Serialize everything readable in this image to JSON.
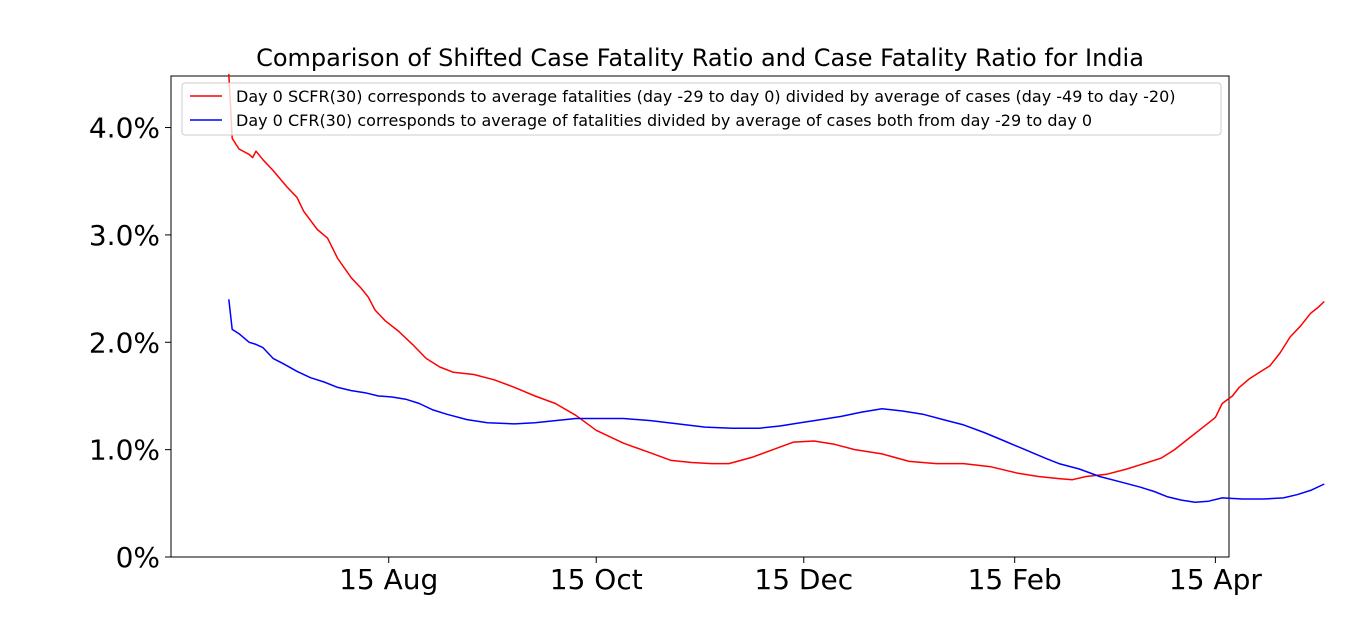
{
  "chart_data": {
    "type": "line",
    "title": "Comparison of Shifted Case Fatality Ratio and Case Fatality Ratio for India",
    "xlabel": "",
    "ylabel": "",
    "x_unit": "days since 15 Jun 2020",
    "xlim": [
      -3,
      308
    ],
    "ylim": [
      0,
      0.0448
    ],
    "yticks": [
      0,
      0.01,
      0.02,
      0.03,
      0.04
    ],
    "ytick_labels": [
      "0%",
      "1.0%",
      "2.0%",
      "3.0%",
      "4.0%"
    ],
    "xticks": [
      61,
      122,
      183,
      245,
      304
    ],
    "xtick_labels": [
      "15 Aug",
      "15 Oct",
      "15 Dec",
      "15 Feb",
      "15 Apr"
    ],
    "legend_position": "top",
    "series": [
      {
        "name": "Day 0 SCFR(30) corresponds to average fatalities (day -29 to day 0) divided by average of cases (day -49 to day -20)",
        "color": "#ff0000",
        "points": [
          [
            14,
            0.045
          ],
          [
            15,
            0.039
          ],
          [
            17,
            0.038
          ],
          [
            20,
            0.0375
          ],
          [
            21,
            0.0372
          ],
          [
            22,
            0.0378
          ],
          [
            24,
            0.037
          ],
          [
            27,
            0.036
          ],
          [
            31,
            0.0345
          ],
          [
            34,
            0.0335
          ],
          [
            36,
            0.0322
          ],
          [
            40,
            0.0305
          ],
          [
            43,
            0.0297
          ],
          [
            46,
            0.0278
          ],
          [
            50,
            0.026
          ],
          [
            53,
            0.025
          ],
          [
            55,
            0.0242
          ],
          [
            57,
            0.023
          ],
          [
            60,
            0.022
          ],
          [
            64,
            0.021
          ],
          [
            68,
            0.0198
          ],
          [
            72,
            0.0185
          ],
          [
            76,
            0.0177
          ],
          [
            80,
            0.0172
          ],
          [
            86,
            0.017
          ],
          [
            92,
            0.0165
          ],
          [
            98,
            0.0158
          ],
          [
            104,
            0.015
          ],
          [
            110,
            0.0143
          ],
          [
            116,
            0.0132
          ],
          [
            122,
            0.0118
          ],
          [
            130,
            0.0106
          ],
          [
            138,
            0.0097
          ],
          [
            144,
            0.009
          ],
          [
            150,
            0.0088
          ],
          [
            156,
            0.0087
          ],
          [
            161,
            0.0087
          ],
          [
            168,
            0.0093
          ],
          [
            174,
            0.01
          ],
          [
            180,
            0.0107
          ],
          [
            186,
            0.0108
          ],
          [
            192,
            0.0105
          ],
          [
            198,
            0.01
          ],
          [
            206,
            0.0096
          ],
          [
            214,
            0.0089
          ],
          [
            222,
            0.0087
          ],
          [
            230,
            0.0087
          ],
          [
            238,
            0.0084
          ],
          [
            246,
            0.0078
          ],
          [
            252,
            0.0075
          ],
          [
            258,
            0.0073
          ],
          [
            262,
            0.0072
          ],
          [
            266,
            0.0075
          ],
          [
            272,
            0.0077
          ],
          [
            278,
            0.0082
          ],
          [
            282,
            0.0086
          ],
          [
            288,
            0.0092
          ],
          [
            292,
            0.01
          ],
          [
            296,
            0.011
          ],
          [
            300,
            0.012
          ],
          [
            304,
            0.013
          ],
          [
            306,
            0.0143
          ],
          [
            309,
            0.015
          ],
          [
            311,
            0.0158
          ],
          [
            314,
            0.0166
          ],
          [
            317,
            0.0172
          ],
          [
            320,
            0.0178
          ],
          [
            323,
            0.019
          ],
          [
            326,
            0.0205
          ],
          [
            329,
            0.0215
          ],
          [
            332,
            0.0227
          ],
          [
            334,
            0.0232
          ],
          [
            336,
            0.0238
          ]
        ]
      },
      {
        "name": "Day 0 CFR(30) corresponds to average of fatalities divided by average of cases both from day -29 to day 0",
        "color": "#0000ff",
        "points": [
          [
            14,
            0.024
          ],
          [
            15,
            0.0212
          ],
          [
            17,
            0.0208
          ],
          [
            20,
            0.02
          ],
          [
            22,
            0.0198
          ],
          [
            24,
            0.0195
          ],
          [
            27,
            0.0185
          ],
          [
            30,
            0.018
          ],
          [
            34,
            0.0173
          ],
          [
            38,
            0.0167
          ],
          [
            42,
            0.0163
          ],
          [
            46,
            0.0158
          ],
          [
            50,
            0.0155
          ],
          [
            54,
            0.0153
          ],
          [
            58,
            0.015
          ],
          [
            62,
            0.0149
          ],
          [
            66,
            0.0147
          ],
          [
            70,
            0.0143
          ],
          [
            74,
            0.0137
          ],
          [
            78,
            0.0133
          ],
          [
            84,
            0.0128
          ],
          [
            90,
            0.0125
          ],
          [
            98,
            0.0124
          ],
          [
            104,
            0.0125
          ],
          [
            110,
            0.0127
          ],
          [
            116,
            0.0129
          ],
          [
            122,
            0.0129
          ],
          [
            130,
            0.0129
          ],
          [
            138,
            0.0127
          ],
          [
            146,
            0.0124
          ],
          [
            154,
            0.0121
          ],
          [
            162,
            0.012
          ],
          [
            170,
            0.012
          ],
          [
            176,
            0.0122
          ],
          [
            182,
            0.0125
          ],
          [
            188,
            0.0128
          ],
          [
            194,
            0.0131
          ],
          [
            200,
            0.0135
          ],
          [
            206,
            0.0138
          ],
          [
            212,
            0.0136
          ],
          [
            218,
            0.0133
          ],
          [
            224,
            0.0128
          ],
          [
            230,
            0.0123
          ],
          [
            236,
            0.0116
          ],
          [
            242,
            0.0108
          ],
          [
            248,
            0.01
          ],
          [
            254,
            0.0092
          ],
          [
            258,
            0.0087
          ],
          [
            264,
            0.0082
          ],
          [
            270,
            0.0075
          ],
          [
            276,
            0.007
          ],
          [
            282,
            0.0065
          ],
          [
            286,
            0.0061
          ],
          [
            290,
            0.0056
          ],
          [
            294,
            0.0053
          ],
          [
            298,
            0.0051
          ],
          [
            302,
            0.0052
          ],
          [
            306,
            0.0055
          ],
          [
            312,
            0.0054
          ],
          [
            318,
            0.0054
          ],
          [
            324,
            0.0055
          ],
          [
            328,
            0.0058
          ],
          [
            332,
            0.0062
          ],
          [
            336,
            0.0068
          ]
        ]
      }
    ]
  }
}
